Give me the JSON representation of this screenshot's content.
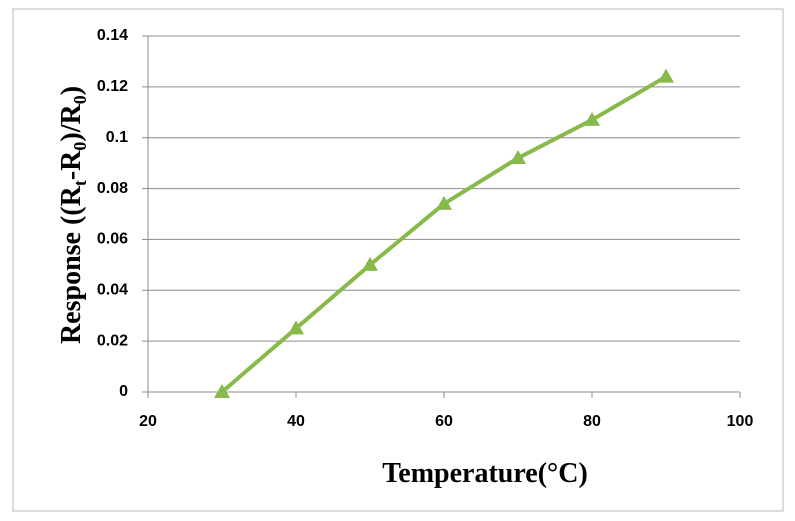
{
  "chart_data": {
    "type": "line",
    "x_label": "Temperature(°C)",
    "y_label_parts": [
      "Response ((R",
      "t",
      "-R",
      "0",
      ")/R",
      "0",
      ")"
    ],
    "x": [
      30,
      40,
      50,
      60,
      70,
      80,
      90
    ],
    "series": [
      {
        "color": "#87ba4b",
        "values": [
          0,
          0.025,
          0.05,
          0.074,
          0.092,
          0.107,
          0.124
        ]
      }
    ],
    "xlim": [
      20,
      100
    ],
    "xticks": [
      20,
      40,
      60,
      80,
      100
    ],
    "ylim": [
      0,
      0.14
    ],
    "yticks": [
      0,
      0.02,
      0.04,
      0.06,
      0.08,
      0.1,
      0.12,
      0.14
    ],
    "grid": true,
    "marker": "triangle"
  }
}
